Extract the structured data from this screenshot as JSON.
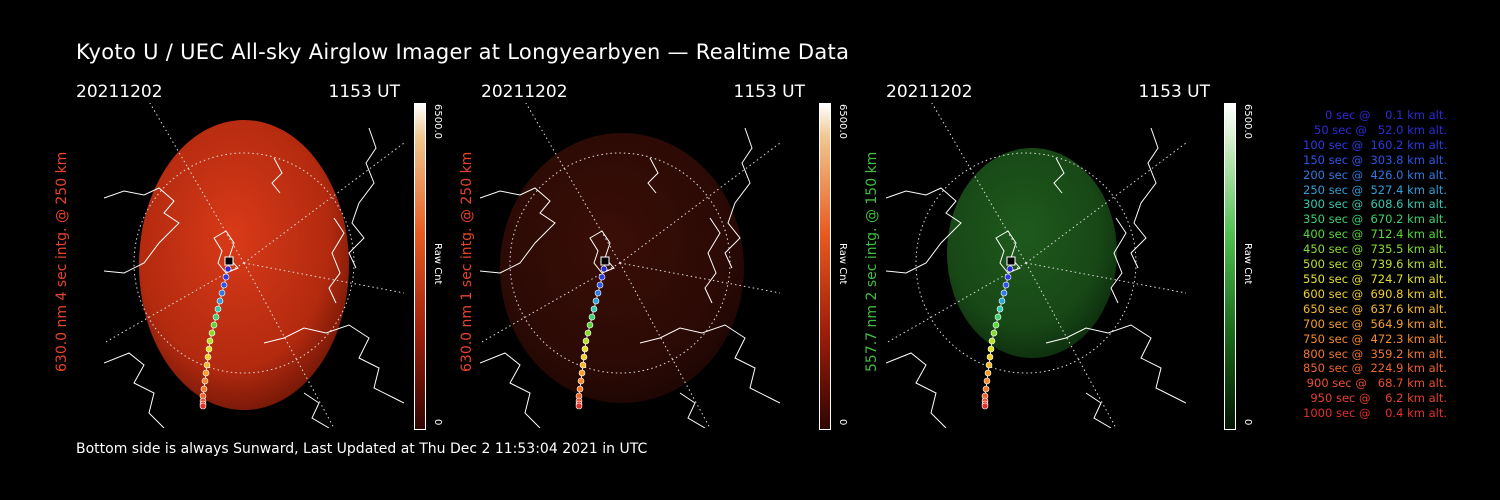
{
  "header": {
    "title": "Kyoto U / UEC All-sky Airglow Imager at Longyearbyen — Realtime Data"
  },
  "footer": {
    "text": "Bottom side is always Sunward, Last Updated at Thu Dec  2 11:53:04 2021 in UTC"
  },
  "colors": {
    "red_channel": "#e8432a",
    "green_channel": "#3fbf3f",
    "coastline": "#ffffff",
    "background": "#000000"
  },
  "chart_data": [
    {
      "type": "heatmap",
      "date": "20211202",
      "time": "1153 UT",
      "ylabel": "630.0 nm 4 sec intg. @ 250 km",
      "label_color": "#e8432a",
      "colorbar": {
        "max_label": "6500.0",
        "min_label": "0",
        "unit": "Raw Cnt"
      }
    },
    {
      "type": "heatmap",
      "date": "20211202",
      "time": "1153 UT",
      "ylabel": "630.0 nm 1 sec intg. @ 250 km",
      "label_color": "#e8432a",
      "colorbar": {
        "max_label": "6500.0",
        "min_label": "0",
        "unit": "Raw Cnt"
      }
    },
    {
      "type": "heatmap",
      "date": "20211202",
      "time": "1153 UT",
      "ylabel": "557.7 nm 2 sec intg. @ 150 km",
      "label_color": "#3fbf3f",
      "colorbar": {
        "max_label": "6500.0",
        "min_label": "0",
        "unit": "Raw Cnt"
      }
    }
  ],
  "trajectory_legend": [
    {
      "text": "   0 sec @    0.1 km alt.",
      "color": "#2b2bd6"
    },
    {
      "text": "  50 sec @   52.0 km alt.",
      "color": "#2b2bd6"
    },
    {
      "text": " 100 sec @  160.2 km alt.",
      "color": "#2d3be0"
    },
    {
      "text": " 150 sec @  303.8 km alt.",
      "color": "#2f55e6"
    },
    {
      "text": " 200 sec @  426.0 km alt.",
      "color": "#2f7ae6"
    },
    {
      "text": " 250 sec @  527.4 km alt.",
      "color": "#2fa0d8"
    },
    {
      "text": " 300 sec @  608.6 km alt.",
      "color": "#36c8b0"
    },
    {
      "text": " 350 sec @  670.2 km alt.",
      "color": "#3fd070"
    },
    {
      "text": " 400 sec @  712.4 km alt.",
      "color": "#56d83a"
    },
    {
      "text": " 450 sec @  735.5 km alt.",
      "color": "#86dc30"
    },
    {
      "text": " 500 sec @  739.6 km alt.",
      "color": "#b8e02c"
    },
    {
      "text": " 550 sec @  724.7 km alt.",
      "color": "#e0e02a"
    },
    {
      "text": " 600 sec @  690.8 km alt.",
      "color": "#f0d02a"
    },
    {
      "text": " 650 sec @  637.6 km alt.",
      "color": "#f5b82a"
    },
    {
      "text": " 700 sec @  564.9 km alt.",
      "color": "#f5a02a"
    },
    {
      "text": " 750 sec @  472.3 km alt.",
      "color": "#f58a2a"
    },
    {
      "text": " 800 sec @  359.2 km alt.",
      "color": "#f5782a"
    },
    {
      "text": " 850 sec @  224.9 km alt.",
      "color": "#f0642a"
    },
    {
      "text": " 900 sec @   68.7 km alt.",
      "color": "#ec502a"
    },
    {
      "text": " 950 sec @    6.2 km alt.",
      "color": "#e8402a"
    },
    {
      "text": "1000 sec @    0.4 km alt.",
      "color": "#e5302a"
    }
  ]
}
